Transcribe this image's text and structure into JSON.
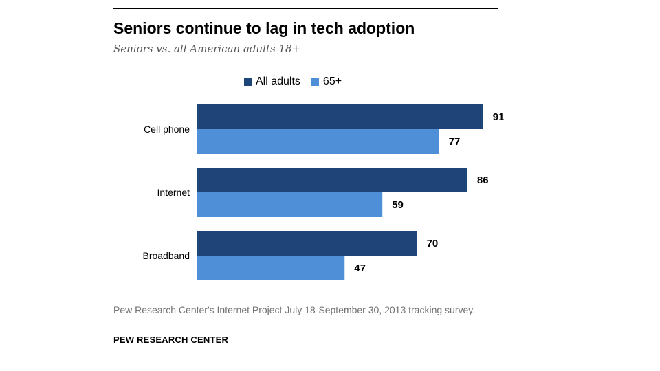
{
  "chart_data": {
    "type": "bar",
    "orientation": "horizontal",
    "title": "Seniors continue to lag in tech adoption",
    "subtitle": "Seniors vs. all American adults 18+",
    "categories": [
      "Cell phone",
      "Internet",
      "Broadband"
    ],
    "series": [
      {
        "name": "All adults",
        "values": [
          91,
          86,
          70
        ],
        "color": "#1f4478"
      },
      {
        "name": "65+",
        "values": [
          77,
          59,
          47
        ],
        "color": "#4f8fd8"
      }
    ],
    "xlim": [
      0,
      100
    ],
    "grid": false,
    "legend_position": "top-center",
    "data_labels": true
  },
  "source": "Pew Research Center's Internet Project July 18-September 30, 2013 tracking survey.",
  "credit": "PEW RESEARCH CENTER"
}
